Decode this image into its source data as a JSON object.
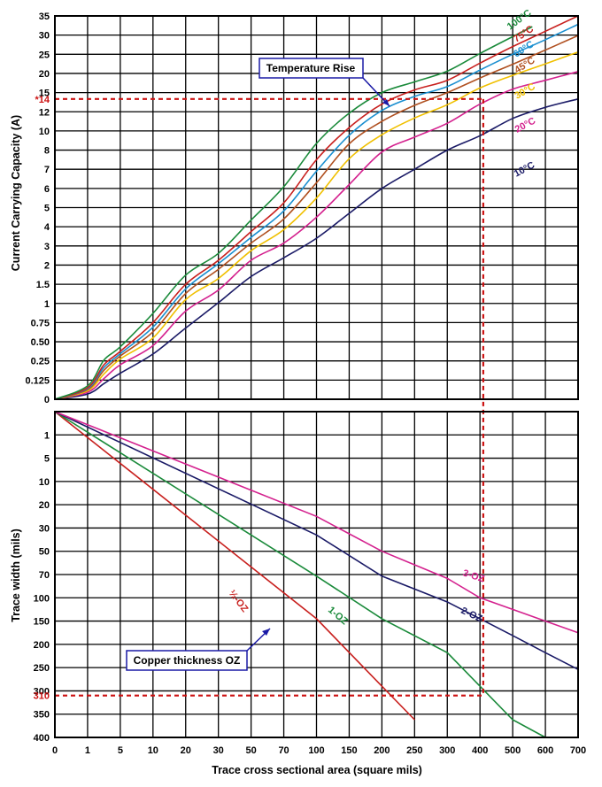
{
  "chart_data": {
    "type": "line",
    "xlabel": "Trace cross sectional area (square mils)",
    "x_ticks": [
      "0",
      "1",
      "5",
      "10",
      "20",
      "30",
      "50",
      "70",
      "100",
      "150",
      "200",
      "250",
      "300",
      "400",
      "500",
      "600",
      "700"
    ],
    "top_panel": {
      "ylabel": "Current Carrying  Capacity (A)",
      "y_ticks": [
        "0",
        "0.125",
        "0.25",
        "0.50",
        "0.75",
        "1",
        "1.5",
        "2",
        "3",
        "4",
        "5",
        "6",
        "7",
        "8",
        "10",
        "12",
        "15",
        "20",
        "25",
        "30",
        "35"
      ],
      "marker_label": "*14",
      "marker_value": 14,
      "callout": "Temperature Rise",
      "series": [
        {
          "name": "10°C",
          "color": "#1a1a66",
          "x": [
            0,
            100,
            200,
            300,
            400,
            500,
            600,
            700
          ],
          "y": [
            0,
            3.4,
            6,
            8,
            9.5,
            11.3,
            12.7,
            14
          ]
        },
        {
          "name": "20°C",
          "color": "#d4218e",
          "x": [
            0,
            100,
            200,
            300,
            400,
            500,
            600,
            700
          ],
          "y": [
            0,
            4.5,
            7.9,
            10.8,
            13.2,
            15.9,
            18.2,
            20.5
          ]
        },
        {
          "name": "30°C",
          "color": "#f0c000",
          "x": [
            0,
            100,
            200,
            300,
            400,
            500,
            600,
            700
          ],
          "y": [
            0,
            5.5,
            9.6,
            13.1,
            16.2,
            19.5,
            22.5,
            25.6
          ]
        },
        {
          "name": "45°C",
          "color": "#b05020",
          "x": [
            0,
            100,
            200,
            300,
            400,
            500,
            600,
            700
          ],
          "y": [
            0,
            6.3,
            11,
            15,
            18.8,
            22.4,
            26.1,
            29.9
          ]
        },
        {
          "name": "60°C",
          "color": "#1a8fd0",
          "x": [
            0,
            100,
            200,
            300,
            400,
            500,
            600,
            700
          ],
          "y": [
            0,
            6.9,
            12.2,
            16.6,
            20.9,
            25,
            28.8,
            32.8
          ]
        },
        {
          "name": "75°C",
          "color": "#c8201e",
          "x": [
            0,
            100,
            200,
            300,
            400,
            500,
            600,
            700
          ],
          "y": [
            0,
            7.5,
            13.2,
            18.2,
            22.7,
            27,
            31,
            35
          ]
        },
        {
          "name": "100°C",
          "color": "#1a8a3a",
          "x": [
            0,
            100,
            200,
            300,
            400,
            500,
            560
          ],
          "y": [
            0,
            8.7,
            15,
            20.6,
            25.2,
            29.6,
            32.2
          ]
        }
      ]
    },
    "bottom_panel": {
      "ylabel": "Trace width (mils)",
      "y_ticks": [
        "0",
        "1",
        "5",
        "10",
        "20",
        "30",
        "50",
        "70",
        "100",
        "150",
        "200",
        "250",
        "300",
        "350",
        "400"
      ],
      "marker_label": "310",
      "marker_value": 310,
      "callout": "Copper thickness OZ",
      "series": [
        {
          "name": "½-OZ",
          "color": "#c8201e",
          "x": [
            0,
            100,
            200,
            250
          ],
          "y": [
            0,
            145,
            290,
            362
          ]
        },
        {
          "name": "1-OZ",
          "color": "#1a8a3a",
          "x": [
            0,
            100,
            200,
            300,
            400,
            500,
            600
          ],
          "y": [
            0,
            72,
            145,
            218,
            290,
            362,
            435
          ]
        },
        {
          "name": "2-OZ",
          "color": "#1a1a66",
          "x": [
            0,
            100,
            200,
            300,
            400,
            500,
            600,
            700
          ],
          "y": [
            0,
            36,
            72,
            109,
            145,
            181,
            218,
            254
          ]
        },
        {
          "name": "3-OZ",
          "color": "#d4218e",
          "x": [
            0,
            100,
            200,
            300,
            400,
            500,
            600,
            700
          ],
          "y": [
            0,
            25,
            50,
            75,
            100,
            125,
            150,
            175
          ]
        }
      ]
    },
    "guide_x": 410,
    "grid": true
  }
}
